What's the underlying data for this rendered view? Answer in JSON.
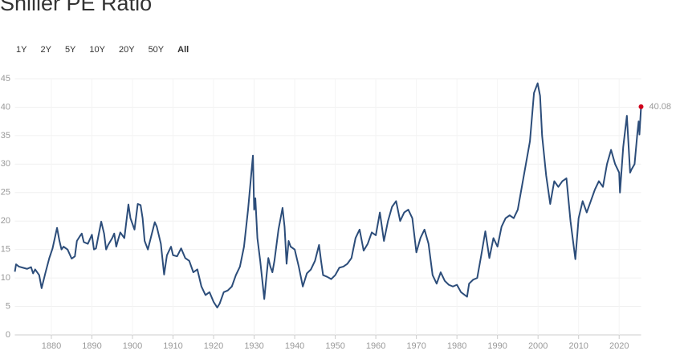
{
  "chart_data": {
    "type": "line",
    "title": "Shiller PE Ratio",
    "range_selector": {
      "options": [
        "1Y",
        "2Y",
        "5Y",
        "10Y",
        "20Y",
        "50Y",
        "All"
      ],
      "active": 6
    },
    "x": [
      1871.0,
      1871.3,
      1872,
      1873,
      1874,
      1875,
      1875.5,
      1876,
      1877,
      1877.6,
      1878.5,
      1879.5,
      1880.3,
      1881.4,
      1882,
      1882.5,
      1883,
      1884,
      1885,
      1885.8,
      1886.3,
      1887,
      1887.5,
      1888,
      1889,
      1890,
      1890.5,
      1891,
      1892.3,
      1893,
      1893.5,
      1894,
      1895,
      1895.5,
      1896,
      1896.5,
      1897,
      1898,
      1899,
      1899.5,
      1900,
      1900.5,
      1901.3,
      1902,
      1902.5,
      1903,
      1903.8,
      1904.5,
      1905.5,
      1906,
      1907,
      1907.8,
      1908.5,
      1909.5,
      1910,
      1911,
      1912,
      1913,
      1914,
      1915,
      1916,
      1917,
      1918,
      1919,
      1920,
      1920.9,
      1921.5,
      1922.5,
      1923.5,
      1924.5,
      1925.5,
      1926.5,
      1927.5,
      1928.5,
      1929.7,
      1930.0,
      1930.3,
      1930.8,
      1931.5,
      1932.5,
      1933,
      1933.5,
      1934,
      1934.5,
      1935,
      1936,
      1937,
      1937.5,
      1938,
      1938.5,
      1939,
      1940,
      1941,
      1942,
      1943,
      1944,
      1945,
      1946,
      1946.5,
      1947,
      1948,
      1949,
      1950,
      1951,
      1952,
      1953,
      1954,
      1955,
      1956,
      1957,
      1958,
      1959,
      1960,
      1961,
      1962,
      1963,
      1964,
      1965,
      1966,
      1967,
      1968,
      1969,
      1970,
      1971,
      1972,
      1973,
      1974,
      1975,
      1976,
      1977,
      1978,
      1979,
      1980,
      1981,
      1982.5,
      1983,
      1984,
      1985,
      1986,
      1987,
      1988,
      1989,
      1990,
      1991,
      1992,
      1993,
      1994,
      1995,
      1996,
      1997,
      1998,
      1999,
      1999.9,
      2000.5,
      2001,
      2002,
      2003,
      2004,
      2005,
      2006,
      2007,
      2008,
      2009.2,
      2010,
      2011,
      2012,
      2013,
      2014,
      2015,
      2016,
      2017,
      2018,
      2019,
      2020,
      2020.2,
      2021,
      2021.9,
      2022.7,
      2023,
      2023.8,
      2024.5,
      2024.8,
      2025.0,
      2025.4
    ],
    "series": [
      {
        "color": "#2c4d7a",
        "values": [
          11.1,
          12.4,
          12.0,
          11.8,
          11.6,
          11.9,
          10.8,
          11.5,
          10.5,
          8.2,
          10.8,
          13.5,
          15.2,
          18.8,
          16.5,
          15.0,
          15.5,
          15.0,
          13.4,
          13.8,
          16.5,
          17.3,
          17.8,
          16.3,
          16.0,
          17.6,
          15.0,
          15.2,
          19.9,
          17.8,
          15.0,
          15.8,
          17.0,
          17.8,
          15.5,
          16.8,
          18.0,
          17.0,
          22.9,
          20.5,
          19.5,
          18.5,
          23.0,
          22.8,
          20.5,
          16.5,
          15.0,
          17.0,
          19.8,
          19.0,
          16.0,
          10.6,
          14.0,
          15.5,
          14.0,
          13.8,
          15.2,
          13.5,
          13.0,
          11.0,
          11.5,
          8.5,
          7.0,
          7.5,
          5.8,
          4.8,
          5.5,
          7.5,
          7.8,
          8.5,
          10.5,
          12.0,
          15.5,
          22.0,
          31.5,
          22.0,
          24.0,
          17.0,
          13.0,
          6.3,
          10.0,
          13.5,
          12.0,
          11.0,
          13.0,
          18.5,
          22.3,
          19.0,
          12.5,
          16.5,
          15.5,
          15.0,
          12.0,
          8.5,
          10.8,
          11.5,
          13.0,
          15.8,
          13.0,
          10.5,
          10.2,
          9.8,
          10.5,
          11.8,
          12.0,
          12.5,
          13.5,
          17.0,
          18.5,
          14.8,
          16.0,
          18.0,
          17.5,
          21.5,
          16.5,
          20.0,
          22.5,
          23.5,
          20.0,
          21.5,
          22.0,
          20.5,
          14.5,
          17.0,
          18.5,
          16.0,
          10.5,
          9.0,
          11.0,
          9.5,
          8.8,
          8.5,
          8.8,
          7.5,
          6.7,
          9.0,
          9.7,
          10.0,
          14.0,
          18.2,
          13.5,
          17.0,
          15.5,
          19.0,
          20.5,
          21.0,
          20.5,
          22.0,
          26.0,
          30.0,
          34.0,
          42.5,
          44.2,
          42.0,
          35.0,
          28.0,
          23.0,
          27.0,
          26.0,
          27.0,
          27.5,
          20.0,
          13.3,
          20.5,
          23.5,
          21.5,
          23.5,
          25.5,
          27.0,
          26.0,
          30.0,
          32.5,
          30.0,
          28.5,
          25.0,
          33.0,
          38.5,
          28.5,
          29.0,
          30.0,
          35.5,
          37.5,
          35.2,
          40.08
        ]
      }
    ],
    "xlim": [
      1871,
      2025.4
    ],
    "xticks": [
      1880,
      1890,
      1900,
      1910,
      1920,
      1930,
      1940,
      1950,
      1960,
      1970,
      1980,
      1990,
      2000,
      2010,
      2020
    ],
    "ylim": [
      0,
      45
    ],
    "yticks": [
      0,
      5,
      10,
      15,
      20,
      25,
      30,
      35,
      40,
      45
    ],
    "grid": true,
    "last_point_color": "#d0021b"
  }
}
